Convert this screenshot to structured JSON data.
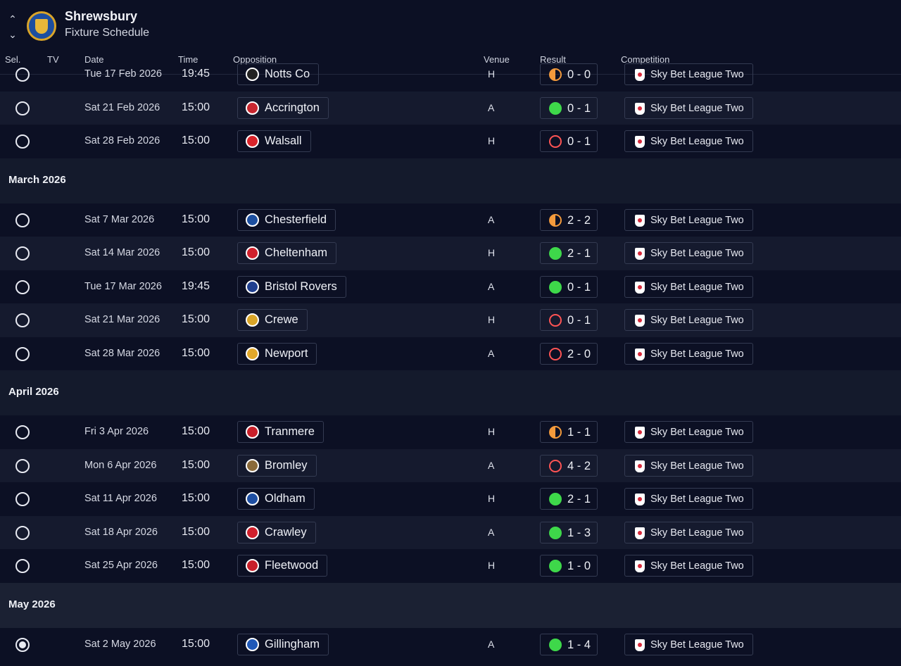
{
  "header": {
    "team_name": "Shrewsbury",
    "subtitle": "Fixture Schedule",
    "nav_up_glyph": "⌃",
    "nav_down_glyph": "⌄"
  },
  "columns": [
    "Sel.",
    "TV",
    "Date",
    "Time",
    "Opposition",
    "Venue",
    "Result",
    "Competition"
  ],
  "colors": {
    "background": "#0c1024",
    "row_alt": "#151a2e",
    "win": "#3ed84a",
    "loss": "#ff5454",
    "draw": "#f39a3c"
  },
  "fixtures": [
    {
      "kind": "fixture",
      "date": "Tue 17 Feb 2026",
      "time": "19:45",
      "opponent": "Notts Co",
      "badge_color": "#222222",
      "venue": "H",
      "outcome": "draw",
      "score": "0 - 0",
      "competition": "Sky Bet League Two",
      "selected": false,
      "alt": false
    },
    {
      "kind": "fixture",
      "date": "Sat 21 Feb 2026",
      "time": "15:00",
      "opponent": "Accrington",
      "badge_color": "#c8262f",
      "venue": "A",
      "outcome": "win",
      "score": "0 - 1",
      "competition": "Sky Bet League Two",
      "selected": false,
      "alt": true
    },
    {
      "kind": "fixture",
      "date": "Sat 28 Feb 2026",
      "time": "15:00",
      "opponent": "Walsall",
      "badge_color": "#d8232a",
      "venue": "H",
      "outcome": "loss",
      "score": "0 - 1",
      "competition": "Sky Bet League Two",
      "selected": false,
      "alt": false
    },
    {
      "kind": "month",
      "label": "March 2026"
    },
    {
      "kind": "fixture",
      "date": "Sat 7 Mar 2026",
      "time": "15:00",
      "opponent": "Chesterfield",
      "badge_color": "#1c4fa0",
      "venue": "A",
      "outcome": "draw",
      "score": "2 - 2",
      "competition": "Sky Bet League Two",
      "selected": false,
      "alt": false
    },
    {
      "kind": "fixture",
      "date": "Sat 14 Mar 2026",
      "time": "15:00",
      "opponent": "Cheltenham",
      "badge_color": "#d0202c",
      "venue": "H",
      "outcome": "win",
      "score": "2 - 1",
      "competition": "Sky Bet League Two",
      "selected": false,
      "alt": true
    },
    {
      "kind": "fixture",
      "date": "Tue 17 Mar 2026",
      "time": "19:45",
      "opponent": "Bristol Rovers",
      "badge_color": "#1f3f8f",
      "venue": "A",
      "outcome": "win",
      "score": "0 - 1",
      "competition": "Sky Bet League Two",
      "selected": false,
      "alt": false
    },
    {
      "kind": "fixture",
      "date": "Sat 21 Mar 2026",
      "time": "15:00",
      "opponent": "Crewe",
      "badge_color": "#d9a528",
      "venue": "H",
      "outcome": "loss",
      "score": "0 - 1",
      "competition": "Sky Bet League Two",
      "selected": false,
      "alt": true
    },
    {
      "kind": "fixture",
      "date": "Sat 28 Mar 2026",
      "time": "15:00",
      "opponent": "Newport",
      "badge_color": "#e2a82a",
      "venue": "A",
      "outcome": "loss",
      "score": "2 - 0",
      "competition": "Sky Bet League Two",
      "selected": false,
      "alt": false
    },
    {
      "kind": "month",
      "label": "April 2026"
    },
    {
      "kind": "fixture",
      "date": "Fri 3 Apr 2026",
      "time": "15:00",
      "opponent": "Tranmere",
      "badge_color": "#c8202a",
      "venue": "H",
      "outcome": "draw",
      "score": "1 - 1",
      "competition": "Sky Bet League Two",
      "selected": false,
      "alt": false
    },
    {
      "kind": "fixture",
      "date": "Mon 6 Apr 2026",
      "time": "15:00",
      "opponent": "Bromley",
      "badge_color": "#8a6a3a",
      "venue": "A",
      "outcome": "loss",
      "score": "4 - 2",
      "competition": "Sky Bet League Two",
      "selected": false,
      "alt": true
    },
    {
      "kind": "fixture",
      "date": "Sat 11 Apr 2026",
      "time": "15:00",
      "opponent": "Oldham",
      "badge_color": "#1e4fa3",
      "venue": "H",
      "outcome": "win",
      "score": "2 - 1",
      "competition": "Sky Bet League Two",
      "selected": false,
      "alt": false
    },
    {
      "kind": "fixture",
      "date": "Sat 18 Apr 2026",
      "time": "15:00",
      "opponent": "Crawley",
      "badge_color": "#d0202c",
      "venue": "A",
      "outcome": "win",
      "score": "1 - 3",
      "competition": "Sky Bet League Two",
      "selected": false,
      "alt": true
    },
    {
      "kind": "fixture",
      "date": "Sat 25 Apr 2026",
      "time": "15:00",
      "opponent": "Fleetwood",
      "badge_color": "#c8202a",
      "venue": "H",
      "outcome": "win",
      "score": "1 - 0",
      "competition": "Sky Bet League Two",
      "selected": false,
      "alt": false
    },
    {
      "kind": "month",
      "label": "May 2026",
      "last": true
    },
    {
      "kind": "fixture",
      "date": "Sat 2 May 2026",
      "time": "15:00",
      "opponent": "Gillingham",
      "badge_color": "#1f58b8",
      "venue": "A",
      "outcome": "win",
      "score": "1 - 4",
      "competition": "Sky Bet League Two",
      "selected": true,
      "alt": false
    }
  ]
}
